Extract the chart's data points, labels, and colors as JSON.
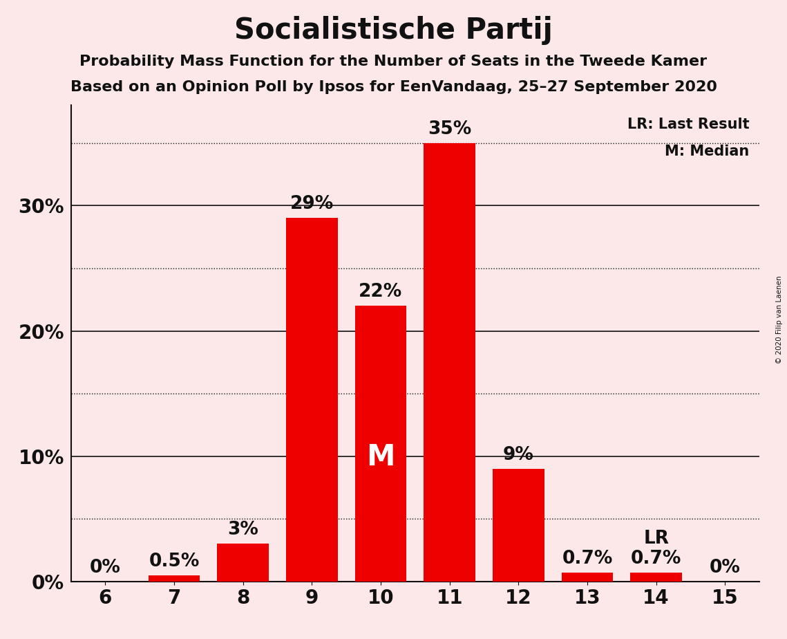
{
  "title": "Socialistische Partij",
  "subtitle1": "Probability Mass Function for the Number of Seats in the Tweede Kamer",
  "subtitle2": "Based on an Opinion Poll by Ipsos for EenVandaag, 25–27 September 2020",
  "copyright": "© 2020 Filip van Laenen",
  "seats": [
    6,
    7,
    8,
    9,
    10,
    11,
    12,
    13,
    14,
    15
  ],
  "probabilities": [
    0.0,
    0.5,
    3.0,
    29.0,
    22.0,
    35.0,
    9.0,
    0.7,
    0.7,
    0.0
  ],
  "bar_color": "#ee0000",
  "bar_labels": [
    "0%",
    "0.5%",
    "3%",
    "29%",
    "22%",
    "35%",
    "9%",
    "0.7%",
    "0.7%",
    "0%"
  ],
  "median_seat": 10,
  "lr_seat": 14,
  "background_color": "#fce8e8",
  "yticks_solid": [
    0,
    10,
    20,
    30
  ],
  "yticks_dotted": [
    5,
    15,
    25,
    35
  ],
  "ylim": [
    0,
    38
  ],
  "xlim": [
    5.5,
    15.5
  ],
  "legend_lr": "LR: Last Result",
  "legend_m": "M: Median",
  "title_fontsize": 30,
  "subtitle_fontsize": 16,
  "bar_label_fontsize": 19,
  "tick_fontsize": 20,
  "bar_width": 0.75
}
